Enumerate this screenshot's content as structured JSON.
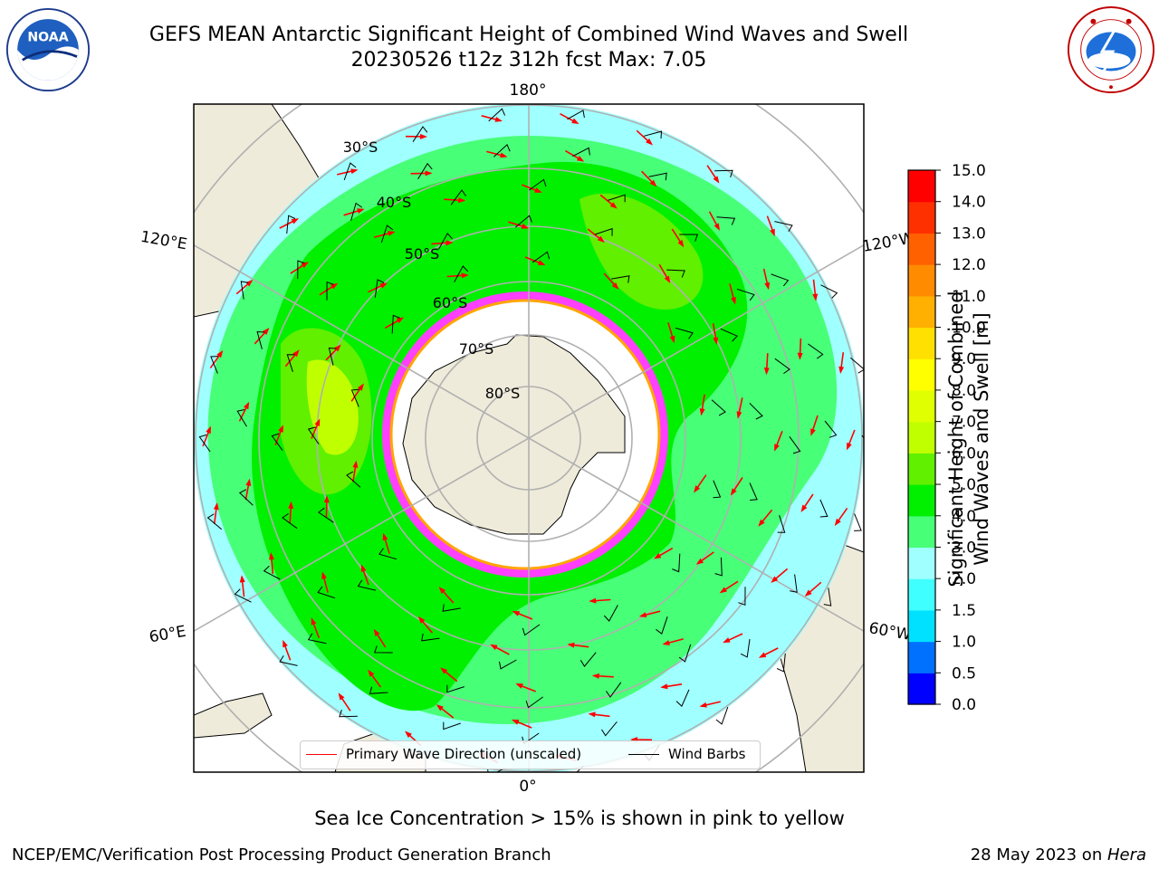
{
  "header": {
    "title_line1": "GEFS MEAN Antarctic Significant Height of Combined Wind Waves and Swell",
    "title_line2": "20230526 t12z 312h fcst   Max: 7.05"
  },
  "logos": {
    "left": "noaa-logo",
    "right": "nws-logo",
    "left_text": "NOAA"
  },
  "map": {
    "projection": "south-polar-stereographic",
    "longitude_labels": {
      "top": "180°",
      "bottom": "0°",
      "upper_left": "120°E",
      "upper_right": "120°W",
      "lower_left": "60°E",
      "lower_right": "60°W"
    },
    "latitude_labels": [
      "30°S",
      "40°S",
      "50°S",
      "60°S",
      "70°S",
      "80°S"
    ],
    "colors": {
      "land": "#efebda",
      "antarctica": "#efebda",
      "sea_ice": "#ff40ff",
      "ice_edge": "#ffa500",
      "arrow": "#ff0000",
      "barb": "#000000",
      "grid": "#b0b0b0"
    }
  },
  "legend": {
    "wave_label": "Primary Wave Direction (unscaled)",
    "barb_label": "Wind Barbs",
    "wave_color": "#ff0000",
    "barb_color": "#000000"
  },
  "colorbar": {
    "title_line1": "Significant Height of Combined",
    "title_line2": "Wind Waves and Swell [m]",
    "ticks": [
      "15.0",
      "14.0",
      "13.0",
      "12.0",
      "11.0",
      "10.0",
      "9.0",
      "8.0",
      "7.0",
      "6.0",
      "5.0",
      "4.0",
      "3.0",
      "2.0",
      "1.5",
      "1.0",
      "0.5",
      "0.0"
    ],
    "boundaries": [
      0.0,
      0.5,
      1.0,
      1.5,
      2.0,
      3.0,
      4.0,
      5.0,
      6.0,
      7.0,
      8.0,
      9.0,
      10.0,
      11.0,
      12.0,
      13.0,
      14.0,
      15.0
    ],
    "colors": [
      "#0000ff",
      "#0070ff",
      "#00e0ff",
      "#40ffff",
      "#a0ffff",
      "#48ff78",
      "#00f000",
      "#60f000",
      "#c0ff00",
      "#e0ff00",
      "#ffff00",
      "#ffe000",
      "#ffb000",
      "#ff8c00",
      "#ff6000",
      "#ff3000",
      "#ff0000"
    ]
  },
  "notes": {
    "sea_ice": "Sea Ice Concentration > 15% is shown in pink to yellow"
  },
  "footer": {
    "left": "NCEP/EMC/Verification Post Processing Product Generation Branch",
    "right_prefix": "28 May 2023 on ",
    "right_host": "Hera"
  }
}
